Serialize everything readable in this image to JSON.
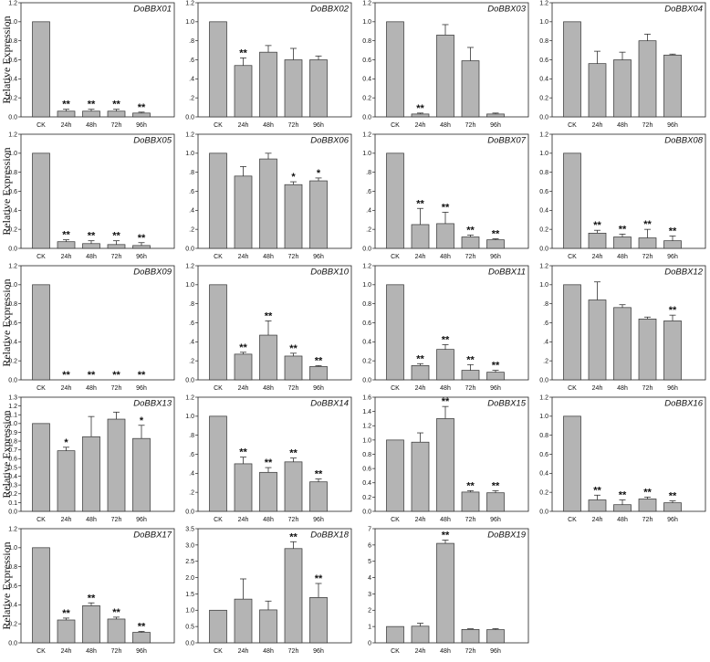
{
  "figure": {
    "ylabel": "Relative Expression",
    "categories": [
      "CK",
      "24h",
      "48h",
      "72h",
      "96h"
    ]
  },
  "chart_data": [
    {
      "type": "bar",
      "title": "DoBBX01",
      "categories": [
        "CK",
        "24h",
        "48h",
        "72h",
        "96h"
      ],
      "values": [
        1.0,
        0.06,
        0.06,
        0.06,
        0.04
      ],
      "errors": [
        0,
        0.02,
        0.02,
        0.02,
        0.01
      ],
      "significance": [
        "",
        "**",
        "**",
        "**",
        "**"
      ],
      "ylim": [
        0,
        1.2
      ],
      "yticks": [
        0,
        0.2,
        0.4,
        0.6,
        0.8,
        1.0,
        1.2
      ],
      "ytick_labels": [
        "0.0",
        "0.2",
        "0.4",
        "0.6",
        "0.8",
        "1.0",
        "1.2"
      ]
    },
    {
      "type": "bar",
      "title": "DoBBX02",
      "categories": [
        "CK",
        "24h",
        "48h",
        "72h",
        "96h"
      ],
      "values": [
        1.0,
        0.54,
        0.68,
        0.6,
        0.6
      ],
      "errors": [
        0,
        0.08,
        0.07,
        0.12,
        0.04
      ],
      "significance": [
        "",
        "**",
        "",
        "",
        ""
      ],
      "ylim": [
        0,
        1.2
      ],
      "yticks": [
        0,
        0.2,
        0.4,
        0.6,
        0.8,
        1.0,
        1.2
      ],
      "ytick_labels": [
        "0.0",
        ".2",
        ".4",
        ".6",
        ".8",
        "1.0",
        "1.2"
      ]
    },
    {
      "type": "bar",
      "title": "DoBBX03",
      "categories": [
        "CK",
        "24h",
        "48h",
        "72h",
        "96h"
      ],
      "values": [
        1.0,
        0.03,
        0.86,
        0.59,
        0.03
      ],
      "errors": [
        0,
        0.01,
        0.11,
        0.14,
        0.01
      ],
      "significance": [
        "",
        "**",
        "",
        "",
        ""
      ],
      "ylim": [
        0,
        1.2
      ],
      "yticks": [
        0,
        0.2,
        0.4,
        0.6,
        0.8,
        1.0,
        1.2
      ],
      "ytick_labels": [
        "0.0",
        "0.2",
        "0.4",
        "0.6",
        "0.8",
        "1.0",
        "1.2"
      ]
    },
    {
      "type": "bar",
      "title": "DoBBX04",
      "categories": [
        "CK",
        "24h",
        "48h",
        "72h",
        "96h"
      ],
      "values": [
        1.0,
        0.56,
        0.6,
        0.8,
        0.65
      ],
      "errors": [
        0,
        0.13,
        0.08,
        0.07,
        0.01
      ],
      "significance": [
        "",
        "",
        "",
        "",
        ""
      ],
      "ylim": [
        0,
        1.2
      ],
      "yticks": [
        0,
        0.2,
        0.4,
        0.6,
        0.8,
        1.0,
        1.2
      ],
      "ytick_labels": [
        "0.0",
        "0.2",
        "0.4",
        "0.6",
        "0.8",
        "1.0",
        "1.2"
      ]
    },
    {
      "type": "bar",
      "title": "DoBBX05",
      "categories": [
        "CK",
        "24h",
        "48h",
        "72h",
        "96h"
      ],
      "values": [
        1.0,
        0.07,
        0.05,
        0.04,
        0.03
      ],
      "errors": [
        0,
        0.02,
        0.03,
        0.04,
        0.03
      ],
      "significance": [
        "",
        "**",
        "**",
        "**",
        "**"
      ],
      "ylim": [
        0,
        1.2
      ],
      "yticks": [
        0,
        0.2,
        0.4,
        0.6,
        0.8,
        1.0,
        1.2
      ],
      "ytick_labels": [
        "0.0",
        "0.2",
        "0.4",
        "0.6",
        "0.8",
        "1.0",
        "1.2"
      ]
    },
    {
      "type": "bar",
      "title": "DoBBX06",
      "categories": [
        "CK",
        "24h",
        "48h",
        "72h",
        "96h"
      ],
      "values": [
        1.0,
        0.76,
        0.94,
        0.67,
        0.71
      ],
      "errors": [
        0,
        0.1,
        0.06,
        0.03,
        0.03
      ],
      "significance": [
        "",
        "",
        "",
        "*",
        "*"
      ],
      "ylim": [
        0,
        1.2
      ],
      "yticks": [
        0,
        0.2,
        0.4,
        0.6,
        0.8,
        1.0,
        1.2
      ],
      "ytick_labels": [
        "0.0",
        ".2",
        ".4",
        ".6",
        ".8",
        "1.0",
        "1.2"
      ]
    },
    {
      "type": "bar",
      "title": "DoBBX07",
      "categories": [
        "CK",
        "24h",
        "48h",
        "72h",
        "96h"
      ],
      "values": [
        1.0,
        0.25,
        0.26,
        0.12,
        0.09
      ],
      "errors": [
        0,
        0.17,
        0.12,
        0.02,
        0.01
      ],
      "significance": [
        "",
        "**",
        "**",
        "**",
        "**"
      ],
      "ylim": [
        0,
        1.2
      ],
      "yticks": [
        0,
        0.2,
        0.4,
        0.6,
        0.8,
        1.0,
        1.2
      ],
      "ytick_labels": [
        "0.0",
        ".2",
        ".4",
        ".6",
        ".8",
        "1.0",
        "1.2"
      ]
    },
    {
      "type": "bar",
      "title": "DoBBX08",
      "categories": [
        "CK",
        "24h",
        "48h",
        "72h",
        "96h"
      ],
      "values": [
        1.0,
        0.16,
        0.12,
        0.11,
        0.08
      ],
      "errors": [
        0,
        0.03,
        0.03,
        0.09,
        0.05
      ],
      "significance": [
        "",
        "**",
        "**",
        "**",
        "**"
      ],
      "ylim": [
        0,
        1.2
      ],
      "yticks": [
        0,
        0.2,
        0.4,
        0.6,
        0.8,
        1.0,
        1.2
      ],
      "ytick_labels": [
        "0.0",
        "0.2",
        "0.4",
        "0.6",
        "0.8",
        "1.0",
        "1.2"
      ]
    },
    {
      "type": "bar",
      "title": "DoBBX09",
      "categories": [
        "CK",
        "24h",
        "48h",
        "72h",
        "96h"
      ],
      "values": [
        1.0,
        0.0,
        0.0,
        0.0,
        0.0
      ],
      "errors": [
        0,
        0,
        0,
        0,
        0
      ],
      "significance": [
        "",
        "**",
        "**",
        "**",
        "**"
      ],
      "ylim": [
        0,
        1.2
      ],
      "yticks": [
        0,
        0.2,
        0.4,
        0.6,
        0.8,
        1.0,
        1.2
      ],
      "ytick_labels": [
        "0.0",
        "0.2",
        "0.4",
        "0.6",
        "0.8",
        "1.0",
        "1.2"
      ]
    },
    {
      "type": "bar",
      "title": "DoBBX10",
      "categories": [
        "CK",
        "24h",
        "48h",
        "72h",
        "96h"
      ],
      "values": [
        1.0,
        0.27,
        0.47,
        0.25,
        0.14
      ],
      "errors": [
        0,
        0.02,
        0.15,
        0.03,
        0.01
      ],
      "significance": [
        "",
        "**",
        "**",
        "**",
        "**"
      ],
      "ylim": [
        0,
        1.2
      ],
      "yticks": [
        0,
        0.2,
        0.4,
        0.6,
        0.8,
        1.0,
        1.2
      ],
      "ytick_labels": [
        "0.0",
        ".2",
        ".4",
        ".6",
        ".8",
        "1.0",
        "1.2"
      ]
    },
    {
      "type": "bar",
      "title": "DoBBX11",
      "categories": [
        "CK",
        "24h",
        "48h",
        "72h",
        "96h"
      ],
      "values": [
        1.0,
        0.15,
        0.32,
        0.1,
        0.08
      ],
      "errors": [
        0,
        0.02,
        0.05,
        0.06,
        0.02
      ],
      "significance": [
        "",
        "**",
        "**",
        "**",
        "**"
      ],
      "ylim": [
        0,
        1.2
      ],
      "yticks": [
        0,
        0.2,
        0.4,
        0.6,
        0.8,
        1.0,
        1.2
      ],
      "ytick_labels": [
        "0.0",
        "0.2",
        "0.4",
        "0.6",
        "0.8",
        "1.0",
        "1.2"
      ]
    },
    {
      "type": "bar",
      "title": "DoBBX12",
      "categories": [
        "CK",
        "24h",
        "48h",
        "72h",
        "96h"
      ],
      "values": [
        1.0,
        0.84,
        0.76,
        0.64,
        0.62
      ],
      "errors": [
        0,
        0.19,
        0.03,
        0.02,
        0.06
      ],
      "significance": [
        "",
        "",
        "",
        "",
        "**"
      ],
      "ylim": [
        0,
        1.2
      ],
      "yticks": [
        0,
        0.2,
        0.4,
        0.6,
        0.8,
        1.0,
        1.2
      ],
      "ytick_labels": [
        "0.0",
        ".2",
        ".4",
        ".6",
        ".8",
        "1.0",
        "1.2"
      ]
    },
    {
      "type": "bar",
      "title": "DoBBX13",
      "categories": [
        "CK",
        "24h",
        "48h",
        "72h",
        "96h"
      ],
      "values": [
        1.0,
        0.69,
        0.85,
        1.05,
        0.83
      ],
      "errors": [
        0,
        0.04,
        0.23,
        0.08,
        0.15
      ],
      "significance": [
        "",
        "*",
        "",
        "",
        "*"
      ],
      "ylim": [
        0,
        1.3
      ],
      "yticks": [
        0,
        0.1,
        0.2,
        0.3,
        0.4,
        0.5,
        0.6,
        0.7,
        0.8,
        0.9,
        1.0,
        1.1,
        1.2,
        1.3
      ],
      "ytick_labels": [
        "0.0",
        "0.1",
        "0.2",
        "0.3",
        "0.4",
        "0.5",
        "0.6",
        "0.7",
        "0.8",
        "0.9",
        "1.0",
        "1.1",
        "1.2",
        "1.3"
      ]
    },
    {
      "type": "bar",
      "title": "DoBBX14",
      "categories": [
        "CK",
        "24h",
        "48h",
        "72h",
        "96h"
      ],
      "values": [
        1.0,
        0.5,
        0.41,
        0.52,
        0.31
      ],
      "errors": [
        0,
        0.07,
        0.05,
        0.04,
        0.03
      ],
      "significance": [
        "",
        "**",
        "**",
        "**",
        "**"
      ],
      "ylim": [
        0,
        1.2
      ],
      "yticks": [
        0,
        0.2,
        0.4,
        0.6,
        0.8,
        1.0,
        1.2
      ],
      "ytick_labels": [
        "0.0",
        ".2",
        ".4",
        ".6",
        ".8",
        "1.0",
        "1.2"
      ]
    },
    {
      "type": "bar",
      "title": "DoBBX15",
      "categories": [
        "CK",
        "24h",
        "48h",
        "72h",
        "96h"
      ],
      "values": [
        1.0,
        0.97,
        1.3,
        0.27,
        0.26
      ],
      "errors": [
        0,
        0.13,
        0.17,
        0.02,
        0.03
      ],
      "significance": [
        "",
        "",
        "**",
        "**",
        "**"
      ],
      "ylim": [
        0,
        1.6
      ],
      "yticks": [
        0,
        0.2,
        0.4,
        0.6,
        0.8,
        1.0,
        1.2,
        1.4,
        1.6
      ],
      "ytick_labels": [
        "0.0",
        "0.2",
        "0.4",
        "0.6",
        "0.8",
        "1.0",
        "1.2",
        "1.4",
        "1.6"
      ]
    },
    {
      "type": "bar",
      "title": "DoBBX16",
      "categories": [
        "CK",
        "24h",
        "48h",
        "72h",
        "96h"
      ],
      "values": [
        1.0,
        0.12,
        0.07,
        0.13,
        0.09
      ],
      "errors": [
        0,
        0.05,
        0.05,
        0.02,
        0.02
      ],
      "significance": [
        "",
        "**",
        "**",
        "**",
        "**"
      ],
      "ylim": [
        0,
        1.2
      ],
      "yticks": [
        0,
        0.2,
        0.4,
        0.6,
        0.8,
        1.0,
        1.2
      ],
      "ytick_labels": [
        "0.0",
        "0.2",
        "0.4",
        "0.6",
        "0.8",
        "1.0",
        "1.2"
      ]
    },
    {
      "type": "bar",
      "title": "DoBBX17",
      "categories": [
        "CK",
        "24h",
        "48h",
        "72h",
        "96h"
      ],
      "values": [
        1.0,
        0.24,
        0.39,
        0.25,
        0.11
      ],
      "errors": [
        0,
        0.02,
        0.03,
        0.02,
        0.01
      ],
      "significance": [
        "",
        "**",
        "**",
        "**",
        "**"
      ],
      "ylim": [
        0,
        1.2
      ],
      "yticks": [
        0,
        0.2,
        0.4,
        0.6,
        0.8,
        1.0,
        1.2
      ],
      "ytick_labels": [
        "0.0",
        "0.2",
        "0.4",
        "0.6",
        "0.8",
        "1.0",
        "1.2"
      ]
    },
    {
      "type": "bar",
      "title": "DoBBX18",
      "categories": [
        "CK",
        "24h",
        "48h",
        "72h",
        "96h"
      ],
      "values": [
        1.0,
        1.34,
        1.01,
        2.89,
        1.39
      ],
      "errors": [
        0,
        0.62,
        0.27,
        0.21,
        0.43
      ],
      "significance": [
        "",
        "",
        "",
        "**",
        "**"
      ],
      "ylim": [
        0,
        3.5
      ],
      "yticks": [
        0,
        0.5,
        1.0,
        1.5,
        2.0,
        2.5,
        3.0,
        3.5
      ],
      "ytick_labels": [
        "0.0",
        "0.5",
        "1.0",
        "1.5",
        "2.0",
        "2.5",
        "3.0",
        "3.5"
      ]
    },
    {
      "type": "bar",
      "title": "DoBBX19",
      "categories": [
        "CK",
        "24h",
        "48h",
        "72h",
        "96h"
      ],
      "values": [
        1.0,
        1.02,
        6.1,
        0.82,
        0.81
      ],
      "errors": [
        0,
        0.18,
        0.2,
        0.04,
        0.06
      ],
      "significance": [
        "",
        "",
        "**",
        "",
        ""
      ],
      "ylim": [
        0,
        7
      ],
      "yticks": [
        0,
        1,
        2,
        3,
        4,
        5,
        6,
        7
      ],
      "ytick_labels": [
        "0",
        "1",
        "2",
        "3",
        "4",
        "5",
        "6",
        "7"
      ]
    }
  ]
}
